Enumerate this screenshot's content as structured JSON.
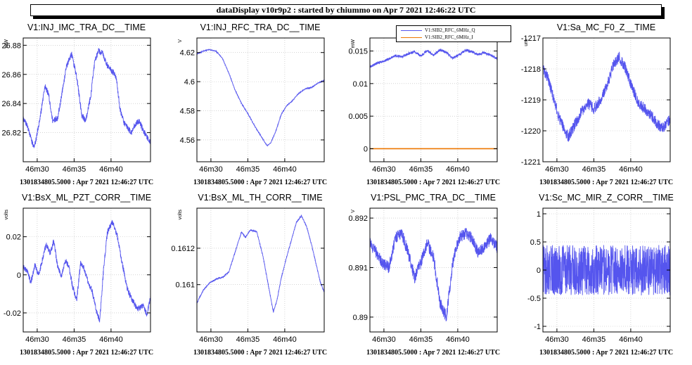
{
  "header": {
    "title": "dataDisplay v10r9p2 : started by chiummo on Apr  7 2021 12:46:22 UTC"
  },
  "x_ticks": [
    "46m30",
    "46m35",
    "46m40"
  ],
  "chart_data": [
    {
      "type": "line",
      "title": "V1:INJ_IMC_TRA_DC__TIME",
      "ylabel": "mW",
      "ylim": [
        26.8,
        26.885
      ],
      "yticks": [
        26.82,
        26.84,
        26.86,
        26.88
      ],
      "color": "#5555ee",
      "noise": 0.002,
      "footer": "1301834805.5000 : Apr  7 2021 12:46:27 UTC",
      "x": [
        0,
        0.03,
        0.06,
        0.08,
        0.1,
        0.14,
        0.17,
        0.2,
        0.23,
        0.27,
        0.3,
        0.34,
        0.38,
        0.42,
        0.46,
        0.49,
        0.53,
        0.56,
        0.59,
        0.62,
        0.66,
        0.7,
        0.73,
        0.76,
        0.79,
        0.82,
        0.85,
        0.88,
        0.91,
        0.94,
        0.97,
        1
      ],
      "y": [
        26.83,
        26.825,
        26.816,
        26.81,
        26.815,
        26.835,
        26.852,
        26.846,
        26.828,
        26.83,
        26.845,
        26.866,
        26.874,
        26.858,
        26.832,
        26.828,
        26.845,
        26.868,
        26.876,
        26.875,
        26.866,
        26.862,
        26.858,
        26.836,
        26.827,
        26.823,
        26.82,
        26.826,
        26.828,
        26.822,
        26.817,
        26.813
      ]
    },
    {
      "type": "line",
      "title": "V1:INJ_RFC_TRA_DC__TIME",
      "ylabel": "V",
      "ylim": [
        4.545,
        4.63
      ],
      "yticks": [
        4.56,
        4.58,
        4.6,
        4.62
      ],
      "color": "#5555ee",
      "noise": 0.0003,
      "footer": "1301834805.5000 : Apr  7 2021 12:46:27 UTC",
      "x": [
        0,
        0.05,
        0.1,
        0.15,
        0.2,
        0.25,
        0.3,
        0.35,
        0.4,
        0.45,
        0.5,
        0.55,
        0.58,
        0.62,
        0.66,
        0.7,
        0.75,
        0.8,
        0.85,
        0.9,
        0.95,
        1
      ],
      "y": [
        4.619,
        4.621,
        4.622,
        4.621,
        4.616,
        4.606,
        4.594,
        4.585,
        4.578,
        4.57,
        4.563,
        4.556,
        4.558,
        4.566,
        4.577,
        4.583,
        4.587,
        4.592,
        4.595,
        4.596,
        4.599,
        4.601
      ]
    },
    {
      "type": "line",
      "title": "",
      "ylabel": "mW",
      "ylim": [
        -0.002,
        0.017
      ],
      "yticks": [
        0,
        0.005,
        0.01,
        0.015
      ],
      "footer": "1301834805.5000 : Apr  7 2021 12:46:27 UTC",
      "series": [
        {
          "name": "V1:SIB2_RFC_6MHz_Q",
          "color": "#5555ee",
          "noise": 0.0002,
          "x": [
            0,
            0.05,
            0.1,
            0.15,
            0.2,
            0.25,
            0.3,
            0.35,
            0.4,
            0.45,
            0.5,
            0.55,
            0.6,
            0.65,
            0.7,
            0.75,
            0.8,
            0.85,
            0.9,
            0.95,
            1
          ],
          "y": [
            0.0125,
            0.0131,
            0.0134,
            0.0138,
            0.0143,
            0.0141,
            0.0146,
            0.0149,
            0.0142,
            0.0151,
            0.0144,
            0.0152,
            0.0148,
            0.0139,
            0.0144,
            0.0151,
            0.0149,
            0.0145,
            0.0147,
            0.0143,
            0.0138
          ]
        },
        {
          "name": "V1:SIB2_RFC_6MHz_I",
          "color": "#ee7700",
          "noise": 0,
          "x": [
            0,
            1
          ],
          "y": [
            0,
            0
          ]
        }
      ]
    },
    {
      "type": "line",
      "title": "V1:Sa_MC_F0_Z__TIME",
      "ylabel": "um",
      "ylim": [
        -1221,
        -1217
      ],
      "yticks": [
        -1221,
        -1220,
        -1219,
        -1218,
        -1217
      ],
      "color": "#5555ee",
      "noise": 0.18,
      "footer": "1301834805.5000 : Apr  7 2021 12:46:27 UTC",
      "x": [
        0,
        0.04,
        0.08,
        0.12,
        0.16,
        0.2,
        0.25,
        0.3,
        0.35,
        0.4,
        0.45,
        0.5,
        0.55,
        0.6,
        0.65,
        0.7,
        0.75,
        0.8,
        0.85,
        0.9,
        0.95,
        1
      ],
      "y": [
        -1218.0,
        -1218.3,
        -1218.9,
        -1219.5,
        -1219.9,
        -1220.2,
        -1219.8,
        -1219.4,
        -1219.1,
        -1219.3,
        -1219.0,
        -1218.6,
        -1217.9,
        -1217.6,
        -1218.0,
        -1218.6,
        -1219.1,
        -1219.3,
        -1219.5,
        -1219.8,
        -1219.9,
        -1219.6
      ]
    },
    {
      "type": "line",
      "title": "V1:BsX_ML_PZT_CORR__TIME",
      "ylabel": "volts",
      "ylim": [
        -0.03,
        0.035
      ],
      "yticks": [
        -0.02,
        0,
        0.02
      ],
      "color": "#5555ee",
      "noise": 0.0015,
      "footer": "1301834805.5000 : Apr  7 2021 12:46:27 UTC",
      "x": [
        0,
        0.03,
        0.06,
        0.09,
        0.12,
        0.15,
        0.18,
        0.21,
        0.24,
        0.27,
        0.3,
        0.33,
        0.36,
        0.39,
        0.42,
        0.45,
        0.48,
        0.51,
        0.54,
        0.57,
        0.6,
        0.63,
        0.66,
        0.7,
        0.74,
        0.78,
        0.82,
        0.86,
        0.9,
        0.94,
        0.97,
        1
      ],
      "y": [
        0.004,
        0.002,
        -0.004,
        0.005,
        0.0,
        0.008,
        0.016,
        0.011,
        0.018,
        0.004,
        -0.001,
        0.008,
        0.004,
        -0.007,
        -0.013,
        0.006,
        0.003,
        -0.004,
        -0.008,
        -0.018,
        -0.024,
        0.002,
        0.022,
        0.028,
        0.02,
        0.005,
        -0.008,
        -0.014,
        -0.018,
        -0.016,
        -0.021,
        -0.012
      ]
    },
    {
      "type": "line",
      "title": "V1:BsX_ML_TH_CORR__TIME",
      "ylabel": "volts",
      "ylim": [
        0.16074,
        0.16142
      ],
      "yticks": [
        0.161,
        0.1612
      ],
      "color": "#5555ee",
      "noise": 4e-06,
      "footer": "1301834805.5000 : Apr  7 2021 12:46:27 UTC",
      "x": [
        0,
        0.05,
        0.1,
        0.15,
        0.2,
        0.25,
        0.3,
        0.35,
        0.38,
        0.42,
        0.47,
        0.52,
        0.56,
        0.6,
        0.63,
        0.66,
        0.7,
        0.74,
        0.78,
        0.82,
        0.86,
        0.9,
        0.94,
        0.97,
        1
      ],
      "y": [
        0.1609,
        0.16097,
        0.16101,
        0.16103,
        0.16104,
        0.16107,
        0.16118,
        0.16129,
        0.16126,
        0.1613,
        0.16129,
        0.16115,
        0.161,
        0.16085,
        0.16092,
        0.16103,
        0.16114,
        0.16124,
        0.16134,
        0.16138,
        0.16132,
        0.16122,
        0.1611,
        0.16101,
        0.16096
      ]
    },
    {
      "type": "line",
      "title": "V1:PSL_PMC_TRA_DC__TIME",
      "ylabel": "V",
      "ylim": [
        0.8897,
        0.8922
      ],
      "yticks": [
        0.89,
        0.891,
        0.892
      ],
      "color": "#5555ee",
      "noise": 0.00012,
      "footer": "1301834805.5000 : Apr  7 2021 12:46:27 UTC",
      "x": [
        0,
        0.05,
        0.1,
        0.15,
        0.2,
        0.25,
        0.3,
        0.35,
        0.4,
        0.45,
        0.5,
        0.55,
        0.6,
        0.65,
        0.7,
        0.75,
        0.8,
        0.85,
        0.9,
        0.95,
        1
      ],
      "y": [
        0.8915,
        0.8913,
        0.8911,
        0.891,
        0.8916,
        0.8917,
        0.8913,
        0.8908,
        0.8911,
        0.8915,
        0.8912,
        0.8903,
        0.89,
        0.8911,
        0.8916,
        0.8917,
        0.8916,
        0.8913,
        0.8914,
        0.8916,
        0.8914
      ]
    },
    {
      "type": "line",
      "title": "V1:Sc_MC_MIR_Z_CORR__TIME",
      "ylabel": "",
      "ylim": [
        -1.1,
        1.1
      ],
      "yticks": [
        -1,
        -0.5,
        0,
        0.5,
        1
      ],
      "color": "#5555ee",
      "noise": 0.45,
      "footer": "1301834805.5000 : Apr  7 2021 12:46:27 UTC",
      "x": [
        0,
        1
      ],
      "y": [
        0,
        0
      ]
    }
  ]
}
